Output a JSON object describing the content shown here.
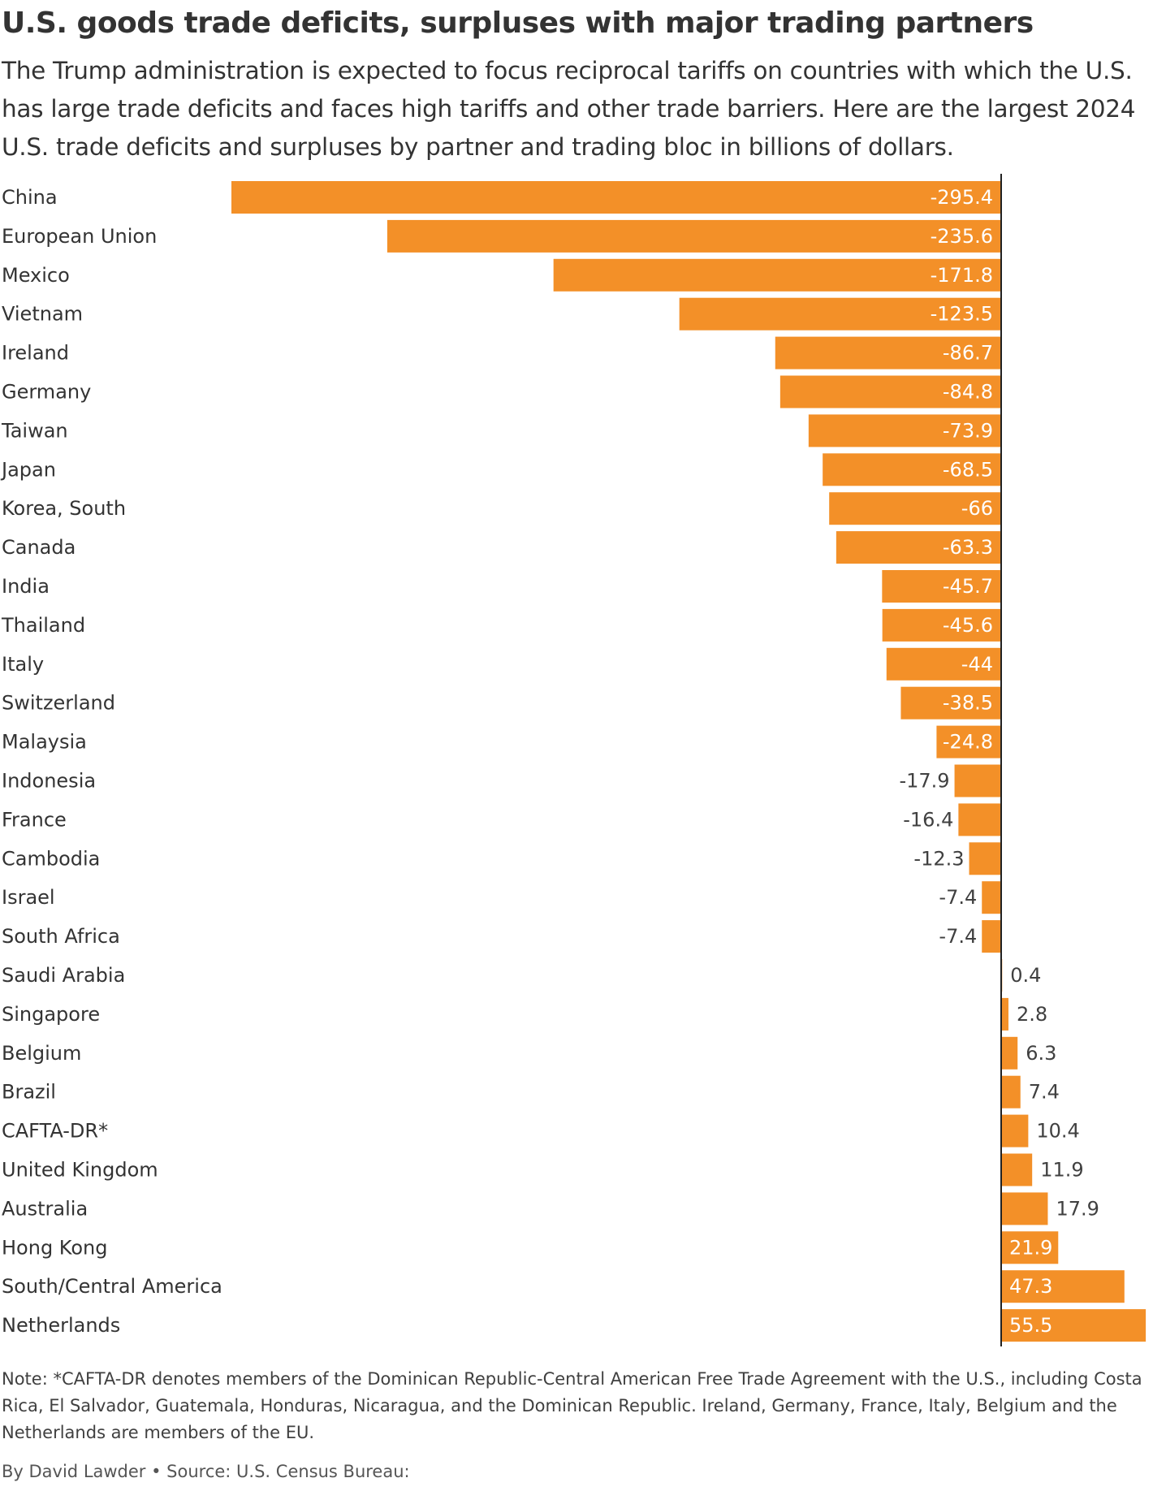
{
  "title": "U.S. goods trade deficits, surpluses with major trading partners",
  "subtitle": "The Trump administration is expected to focus reciprocal tariffs on countries with which the U.S. has large trade deficits and faces high tariffs and other trade barriers. Here are the largest 2024 U.S. trade deficits and surpluses by partner and trading bloc in billions of dollars.",
  "note": "Note: *CAFTA-DR denotes members of the Dominican Republic-Central American Free Trade Agreement with the U.S., including Costa Rica, El Salvador, Guatemala, Honduras, Nicaragua, and the Dominican Republic. Ireland, Germany, France, Italy, Belgium and the Netherlands are members of the EU.",
  "byline": "By David Lawder • Source: U.S. Census Bureau:",
  "colors": {
    "bar": "#f39028",
    "label_inside": "#ffffff",
    "label_outside": "#404040",
    "text": "#333333",
    "axis": "#222222"
  },
  "chart_data": {
    "type": "bar",
    "orientation": "horizontal",
    "title": "U.S. goods trade deficits, surpluses with major trading partners",
    "xlabel": "",
    "ylabel": "",
    "units": "billions of dollars",
    "xlim": [
      -295.4,
      55.5
    ],
    "grid": false,
    "categories": [
      "China",
      "European Union",
      "Mexico",
      "Vietnam",
      "Ireland",
      "Germany",
      "Taiwan",
      "Japan",
      "Korea, South",
      "Canada",
      "India",
      "Thailand",
      "Italy",
      "Switzerland",
      "Malaysia",
      "Indonesia",
      "France",
      "Cambodia",
      "Israel",
      "South Africa",
      "Saudi Arabia",
      "Singapore",
      "Belgium",
      "Brazil",
      "CAFTA-DR*",
      "United Kingdom",
      "Australia",
      "Hong Kong",
      "South/Central America",
      "Netherlands"
    ],
    "values": [
      -295.4,
      -235.6,
      -171.8,
      -123.5,
      -86.7,
      -84.8,
      -73.9,
      -68.5,
      -66,
      -63.3,
      -45.7,
      -45.6,
      -44,
      -38.5,
      -24.8,
      -17.9,
      -16.4,
      -12.3,
      -7.4,
      -7.4,
      0.4,
      2.8,
      6.3,
      7.4,
      10.4,
      11.9,
      17.9,
      21.9,
      47.3,
      55.5
    ],
    "value_labels": [
      "-295.4",
      "-235.6",
      "-171.8",
      "-123.5",
      "-86.7",
      "-84.8",
      "-73.9",
      "-68.5",
      "-66",
      "-63.3",
      "-45.7",
      "-45.6",
      "-44",
      "-38.5",
      "-24.8",
      "-17.9",
      "-16.4",
      "-12.3",
      "-7.4",
      "-7.4",
      "0.4",
      "2.8",
      "6.3",
      "7.4",
      "10.4",
      "11.9",
      "17.9",
      "21.9",
      "47.3",
      "55.5"
    ]
  }
}
